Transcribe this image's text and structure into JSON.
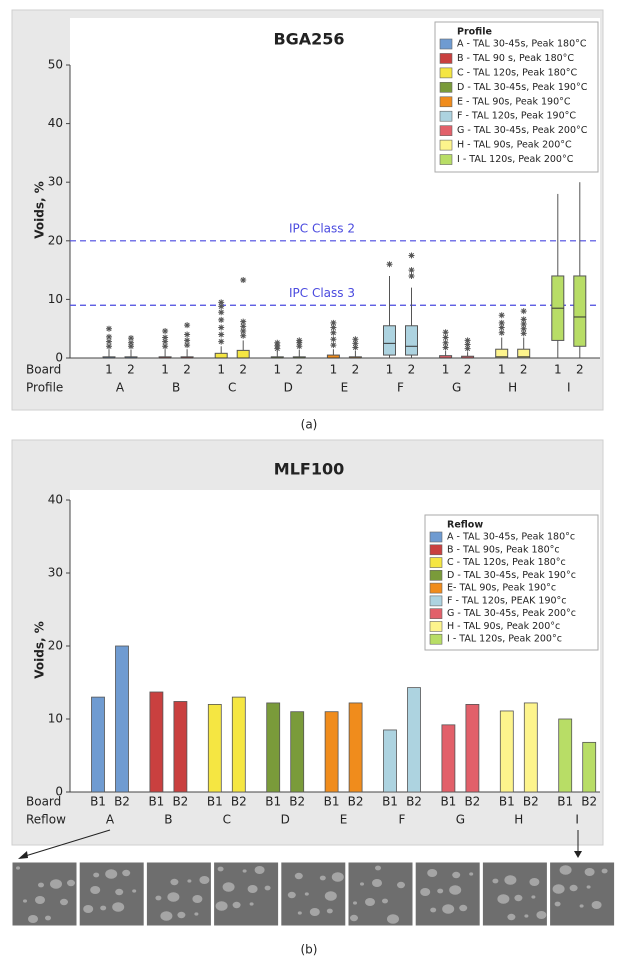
{
  "chart_data": [
    {
      "type": "box",
      "title": "BGA256",
      "ylabel": "Voids, %",
      "caption": "(a)",
      "row_labels": [
        "Board",
        "Profile"
      ],
      "boards": [
        "1",
        "2"
      ],
      "groups": [
        "A",
        "B",
        "C",
        "D",
        "E",
        "F",
        "G",
        "H",
        "I"
      ],
      "ylim": [
        0,
        50
      ],
      "yticks": [
        0,
        10,
        20,
        30,
        40,
        50
      ],
      "ref_lines": [
        {
          "value": 20,
          "label": "IPC Class 2",
          "color": "#4a4adf"
        },
        {
          "value": 9,
          "label": "IPC Class 3",
          "color": "#4a4adf"
        }
      ],
      "legend_title": "Profile",
      "series": [
        {
          "name": "A - TAL 30-45s, Peak 180°C",
          "color": "#6f9bd1",
          "values": [
            {
              "min": 0,
              "q1": 0,
              "median": 0,
              "q3": 0.2,
              "max": 1.5,
              "outliers": [
                2,
                2.8,
                3.6,
                5
              ]
            },
            {
              "min": 0,
              "q1": 0,
              "median": 0,
              "q3": 0.2,
              "max": 1.4,
              "outliers": [
                2,
                2.6,
                3.4
              ]
            }
          ]
        },
        {
          "name": "B - TAL 90 s, Peak 180°C",
          "color": "#c9403f",
          "values": [
            {
              "min": 0,
              "q1": 0,
              "median": 0,
              "q3": 0.2,
              "max": 1.5,
              "outliers": [
                2,
                2.8,
                3.5,
                4.6
              ]
            },
            {
              "min": 0,
              "q1": 0,
              "median": 0,
              "q3": 0.2,
              "max": 1.5,
              "outliers": [
                2.2,
                3,
                4,
                5.6
              ]
            }
          ]
        },
        {
          "name": "C - TAL 120s, Peak 180°C",
          "color": "#f5e642",
          "values": [
            {
              "min": 0,
              "q1": 0,
              "median": 0,
              "q3": 0.8,
              "max": 2,
              "outliers": [
                2.8,
                4,
                5.2,
                6.5,
                7.8,
                8.8,
                9.5
              ]
            },
            {
              "min": 0,
              "q1": 0,
              "median": 0,
              "q3": 1.3,
              "max": 3,
              "outliers": [
                3.8,
                4.6,
                5.4,
                6.2,
                13.3
              ]
            }
          ]
        },
        {
          "name": "D - TAL 30-45s, Peak 190°C",
          "color": "#7a9b3a",
          "values": [
            {
              "min": 0,
              "q1": 0,
              "median": 0,
              "q3": 0.2,
              "max": 1.2,
              "outliers": [
                1.6,
                2.1,
                2.6
              ]
            },
            {
              "min": 0,
              "q1": 0,
              "median": 0,
              "q3": 0.2,
              "max": 1.4,
              "outliers": [
                2,
                2.6,
                3
              ]
            }
          ]
        },
        {
          "name": "E - TAL 90s, Peak 190°C",
          "color": "#f08c1c",
          "values": [
            {
              "min": 0,
              "q1": 0,
              "median": 0,
              "q3": 0.5,
              "max": 1.5,
              "outliers": [
                2.2,
                3.2,
                4.3,
                5.2,
                6
              ]
            },
            {
              "min": 0,
              "q1": 0,
              "median": 0,
              "q3": 0.2,
              "max": 1.2,
              "outliers": [
                1.8,
                2.5,
                3.2
              ]
            }
          ]
        },
        {
          "name": "F - TAL 120s, Peak 190°C",
          "color": "#add3e0",
          "values": [
            {
              "min": 0,
              "q1": 0.5,
              "median": 2.5,
              "q3": 5.5,
              "max": 14,
              "outliers": [
                16
              ]
            },
            {
              "min": 0,
              "q1": 0.5,
              "median": 2,
              "q3": 5.5,
              "max": 12,
              "outliers": [
                14,
                15,
                17.5
              ]
            }
          ]
        },
        {
          "name": "G - TAL 30-45s, Peak 200°C",
          "color": "#e2606a",
          "values": [
            {
              "min": 0,
              "q1": 0,
              "median": 0,
              "q3": 0.4,
              "max": 1.2,
              "outliers": [
                1.8,
                2.6,
                3.5,
                4.4
              ]
            },
            {
              "min": 0,
              "q1": 0,
              "median": 0,
              "q3": 0.3,
              "max": 1,
              "outliers": [
                1.6,
                2.3,
                3
              ]
            }
          ]
        },
        {
          "name": "H - TAL 90s, Peak 200°C",
          "color": "#fdf48c",
          "values": [
            {
              "min": 0,
              "q1": 0,
              "median": 0.2,
              "q3": 1.5,
              "max": 3.5,
              "outliers": [
                4.3,
                5.2,
                6,
                7.3
              ]
            },
            {
              "min": 0,
              "q1": 0,
              "median": 0.2,
              "q3": 1.5,
              "max": 3.5,
              "outliers": [
                4.2,
                5,
                5.8,
                6.6,
                8
              ]
            }
          ]
        },
        {
          "name": "I - TAL 120s, Peak 200°C",
          "color": "#b8dd66",
          "values": [
            {
              "min": 0,
              "q1": 3,
              "median": 8.5,
              "q3": 14,
              "max": 28,
              "outliers": []
            },
            {
              "min": 0,
              "q1": 2,
              "median": 7,
              "q3": 14,
              "max": 30,
              "outliers": []
            }
          ]
        }
      ]
    },
    {
      "type": "bar",
      "title": "MLF100",
      "ylabel": "Voids, %",
      "caption": "(b)",
      "row_labels": [
        "Board",
        "Reflow"
      ],
      "boards": [
        "B1",
        "B2"
      ],
      "groups": [
        "A",
        "B",
        "C",
        "D",
        "E",
        "F",
        "G",
        "H",
        "I"
      ],
      "ylim": [
        0,
        40
      ],
      "yticks": [
        0,
        10,
        20,
        30,
        40
      ],
      "legend_title": "Reflow",
      "series": [
        {
          "name": "A - TAL 30-45s, Peak 180°c",
          "color": "#6f9bd1",
          "values": [
            13,
            20
          ]
        },
        {
          "name": "B - TAL 90s, Peak 180°c",
          "color": "#c9403f",
          "values": [
            13.7,
            12.4
          ]
        },
        {
          "name": "C - TAL 120s, Peak 180°c",
          "color": "#f5e642",
          "values": [
            12,
            13
          ]
        },
        {
          "name": "D - TAL 30-45s, Peak 190°c",
          "color": "#7a9b3a",
          "values": [
            12.2,
            11
          ]
        },
        {
          "name": "E- TAL 90s, Peak 190°c",
          "color": "#f08c1c",
          "values": [
            11,
            12.2
          ]
        },
        {
          "name": "F - TAL 120s, PEAK 190°c",
          "color": "#add3e0",
          "values": [
            8.5,
            14.3
          ]
        },
        {
          "name": "G - TAL 30-45s, Peak 200°c",
          "color": "#e2606a",
          "values": [
            9.2,
            12
          ]
        },
        {
          "name": "H - TAL 90s, Peak 200°c",
          "color": "#fdf48c",
          "values": [
            11.1,
            12.2
          ]
        },
        {
          "name": "I - TAL 120s, Peak 200°c",
          "color": "#b8dd66",
          "values": [
            10,
            6.8
          ]
        }
      ]
    }
  ]
}
